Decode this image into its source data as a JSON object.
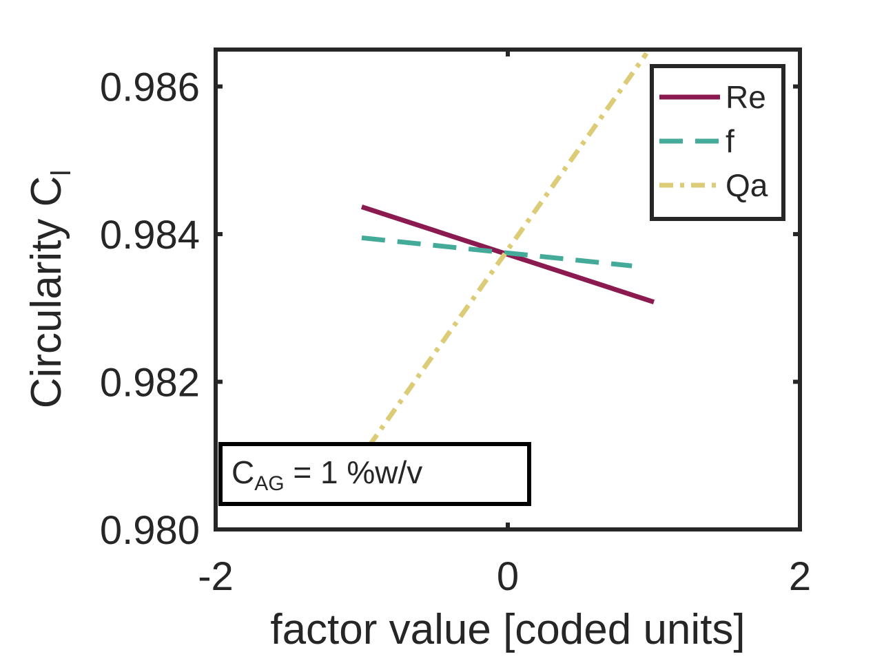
{
  "chart_data": {
    "type": "line",
    "xlabel": "factor value [coded units]",
    "ylabel": "Circularity C",
    "ylabel_sub": "l",
    "xlim": [
      -2,
      2
    ],
    "ylim": [
      0.98,
      0.9865
    ],
    "x_ticks": [
      -2,
      0,
      2
    ],
    "x_tick_labels": [
      "-2",
      "0",
      "2"
    ],
    "y_ticks": [
      0.98,
      0.982,
      0.984,
      0.986
    ],
    "y_tick_labels": [
      "0.980",
      "0.982",
      "0.984",
      "0.986"
    ],
    "grid": false,
    "legend_position": "top-right",
    "series": [
      {
        "name": "Re",
        "color": "#8b1a50",
        "dash": "solid",
        "x": [
          -1,
          1
        ],
        "y": [
          0.98437,
          0.98308
        ]
      },
      {
        "name": "f",
        "color": "#44aa99",
        "dash": "dashed",
        "x": [
          -1,
          0.85
        ],
        "y": [
          0.98395,
          0.98357
        ]
      },
      {
        "name": "Qa",
        "color": "#ddcc77",
        "dash": "dashdot",
        "x": [
          -0.95,
          0.95
        ],
        "y": [
          0.98113,
          0.98645
        ]
      }
    ],
    "annotation": {
      "main": "C",
      "sub": "AG",
      "rest": " = 1 %w/v"
    }
  }
}
